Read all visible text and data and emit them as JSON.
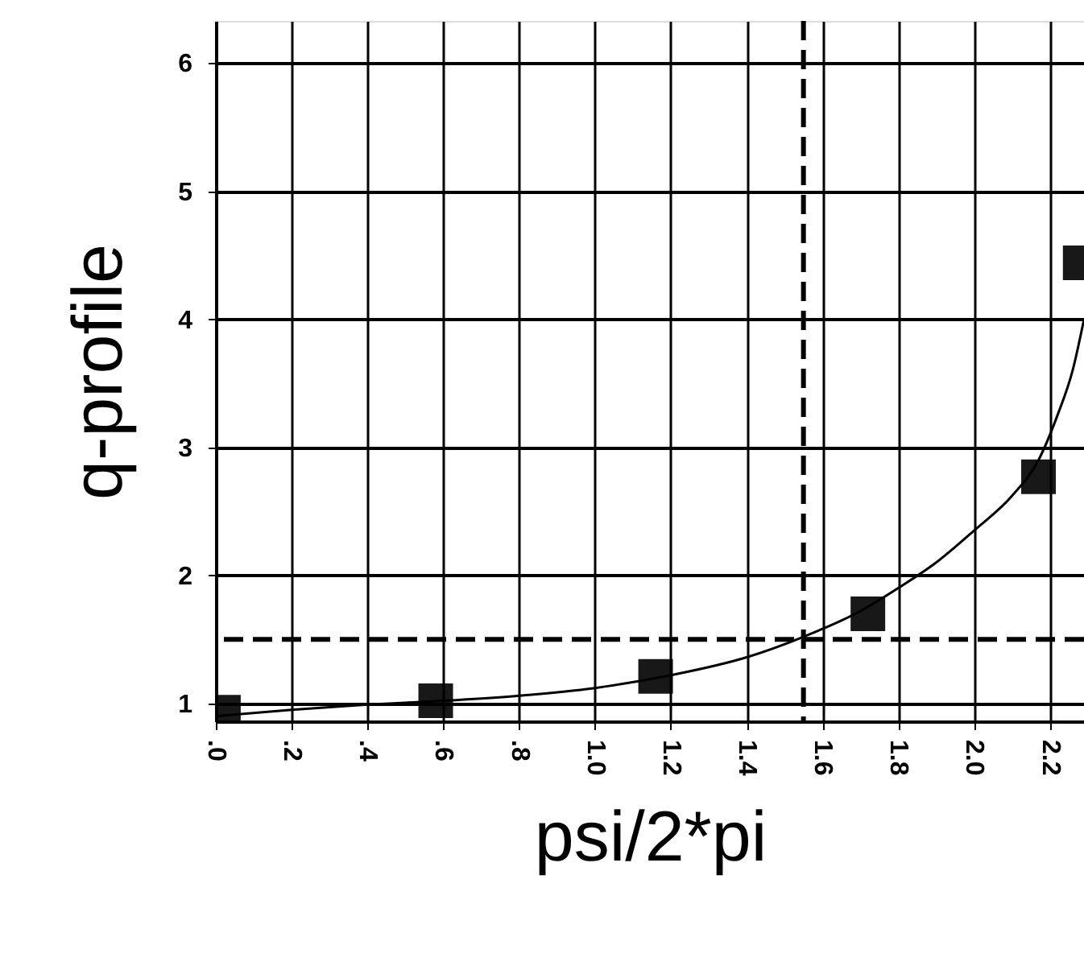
{
  "chart_data": {
    "type": "scatter",
    "xlabel": "psi/2*pi",
    "ylabel": "q-profile",
    "xlim": [
      0,
      2.29
    ],
    "ylim": [
      0.86,
      6.33
    ],
    "xticks": [
      {
        "value": 0,
        "label": ".0"
      },
      {
        "value": 0.2,
        "label": ".2"
      },
      {
        "value": 0.4,
        "label": ".4"
      },
      {
        "value": 0.6,
        "label": ".6"
      },
      {
        "value": 0.8,
        "label": ".8"
      },
      {
        "value": 1.0,
        "label": "1.0"
      },
      {
        "value": 1.2,
        "label": "1.2"
      },
      {
        "value": 1.4,
        "label": "1.4"
      },
      {
        "value": 1.6,
        "label": "1.6"
      },
      {
        "value": 1.8,
        "label": "1.8"
      },
      {
        "value": 2.0,
        "label": "2.0"
      },
      {
        "value": 2.2,
        "label": "2.2"
      }
    ],
    "yticks": [
      1,
      2,
      3,
      4,
      5,
      6
    ],
    "grid": true,
    "series": [
      {
        "type": "line",
        "color": "#000000",
        "line_style": "solid",
        "marker": "none",
        "x": [
          0,
          0.2,
          0.4,
          0.6,
          0.8,
          1.0,
          1.2,
          1.4,
          1.55,
          1.7,
          1.8,
          1.9,
          2.0,
          2.1,
          2.17,
          2.22,
          2.26,
          2.29
        ],
        "values": [
          0.9,
          0.95,
          0.99,
          1.02,
          1.06,
          1.12,
          1.22,
          1.36,
          1.52,
          1.72,
          1.9,
          2.1,
          2.35,
          2.62,
          2.9,
          3.25,
          3.6,
          4.0
        ]
      },
      {
        "color": "#000000",
        "marker": "square",
        "x": [
          0.02,
          0.58,
          1.16,
          1.72,
          2.17,
          2.28
        ],
        "values": [
          0.93,
          1.02,
          1.21,
          1.7,
          2.77,
          4.44
        ]
      }
    ],
    "ref_lines": [
      {
        "axis": "y",
        "value": 1.5,
        "line_style": "dashed",
        "color": "#000000"
      },
      {
        "axis": "x",
        "value": 1.55,
        "line_style": "dashed",
        "color": "#000000"
      }
    ]
  }
}
